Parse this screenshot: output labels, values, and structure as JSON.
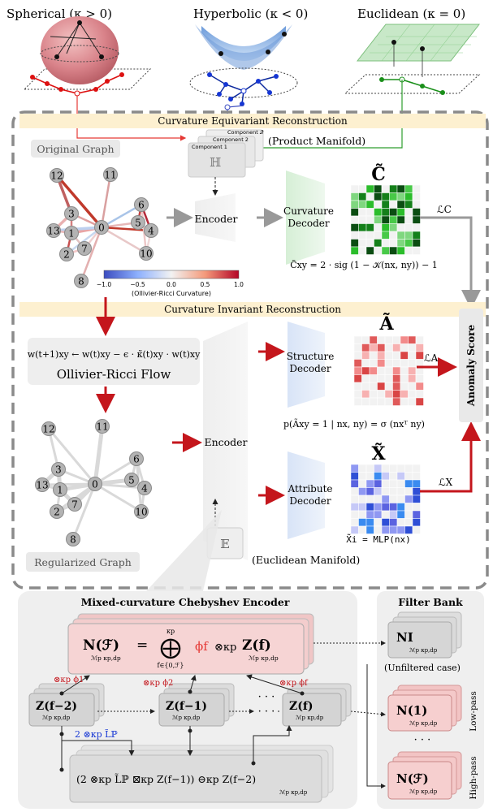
{
  "geometries": {
    "spherical": "Spherical (κ > 0)",
    "hyperbolic": "Hyperbolic (κ < 0)",
    "euclidean": "Euclidean (κ = 0)"
  },
  "top_section": {
    "banner": "Curvature Equivariant Reconstruction",
    "original_graph": "Original Graph",
    "product_manifold": "(Product Manifold)",
    "components": [
      "Component 𝒬",
      "Component 2",
      "Component 1"
    ],
    "hyper_symbol": "ℍ",
    "encoder": "Encoder",
    "decoder": "Curvature Decoder",
    "matrix_label": "C̃",
    "matrix_formula": "C̃xy = 2 · sig (1 − 𝒦(nx, ny)) − 1",
    "loss": "ℒC",
    "colorbar_ticks": [
      "−1.0",
      "−0.5",
      "0.0",
      "0.5",
      "1.0"
    ],
    "colorbar_label": "(Ollivier-Ricci Curvature)"
  },
  "middle_section": {
    "banner": "Curvature Invariant Reconstruction",
    "flow_formula": "w(t+1)xy ← w(t)xy − ϵ · κ̃(t)xy · w(t)xy",
    "flow_title": "Ollivier-Ricci Flow",
    "regularized_graph": "Regularized Graph",
    "encoder": "Encoder",
    "structure_decoder": "Structure Decoder",
    "attribute_decoder": "Attribute Decoder",
    "structure_matrix": "Ã",
    "attribute_matrix": "X̃",
    "structure_formula": "p(Ãxy = 1 | nx, ny) = σ (nxᵀ ny)",
    "attribute_formula": "X̃i = MLP(nx)",
    "loss_a": "ℒA",
    "loss_x": "ℒX",
    "anomaly": "Anomaly Score",
    "euclid_symbol": "𝔼",
    "euclid_manifold": "(Euclidean Manifold)"
  },
  "nodes": [
    "0",
    "1",
    "2",
    "3",
    "4",
    "5",
    "6",
    "7",
    "8",
    "10",
    "11",
    "12",
    "13"
  ],
  "bottom_section": {
    "encoder_title": "Mixed-curvature Chebyshev Encoder",
    "filter_bank_title": "Filter Bank",
    "top_formula_lhs": "N(ℱ)",
    "top_formula_sub": "ℳp κp,dp",
    "top_formula_eq": "=",
    "top_formula_op": "⨁",
    "top_formula_over": "κp",
    "top_formula_under": "f∈{0,ℱ}",
    "top_formula_phi": "ϕf",
    "top_formula_tensor": "⊗κp",
    "top_formula_z": "Z(f)",
    "z_nodes": [
      "Z(f−2)",
      "Z(f−1)",
      "Z(f)"
    ],
    "z_sub": "ℳp κp,dp",
    "dots": "· · ·",
    "phi_labels": [
      "⊗κp ϕ1",
      "⊗κp ϕ2",
      "⊗κp ϕf"
    ],
    "laplacian_label": "2 ⊗κp L̃ℙ",
    "bottom_formula": "(2 ⊗κp L̃ℙ ⊠κp Z(f−1)) ⊖κp Z(f−2)",
    "bottom_formula_sub": "ℳp κp,dp",
    "filters": [
      "NI",
      "N(1)",
      "N(ℱ)"
    ],
    "filter_sub": "ℳp κp,dp",
    "unfiltered": "(Unfiltered case)",
    "low_pass": "Low-pass",
    "high_pass": "High-pass",
    "filter_dots": "· · ·"
  },
  "colors": {
    "spherical": "#d9838a",
    "hyperbolic": "#7fa6d8",
    "euclidean": "#9cd39c",
    "red_arrow": "#c4161c",
    "banner": "#fdf0d0",
    "filter_fill": "#f6c9c9"
  }
}
